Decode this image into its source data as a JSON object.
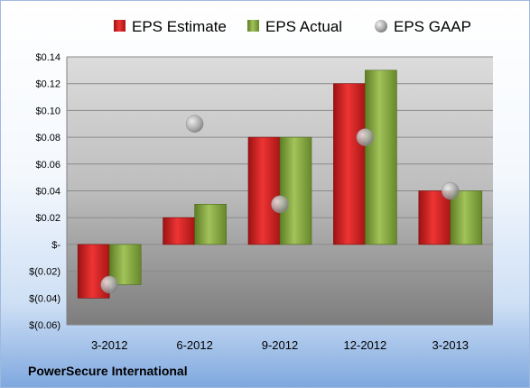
{
  "company": "PowerSecure International",
  "colors": {
    "estimate": "#cc1f1f",
    "actual": "#84a83a",
    "gaap": "#a9a9a9"
  },
  "chart_data": {
    "type": "bar",
    "categories": [
      "3-2012",
      "6-2012",
      "9-2012",
      "12-2012",
      "3-2013"
    ],
    "series": [
      {
        "name": "EPS Estimate",
        "kind": "bar",
        "values": [
          -0.04,
          0.02,
          0.08,
          0.12,
          0.04
        ]
      },
      {
        "name": "EPS Actual",
        "kind": "bar",
        "values": [
          -0.03,
          0.03,
          0.08,
          0.13,
          0.04
        ]
      },
      {
        "name": "EPS GAAP",
        "kind": "scatter",
        "values": [
          -0.03,
          0.09,
          0.03,
          0.08,
          0.04
        ]
      }
    ],
    "ylim": [
      -0.06,
      0.14
    ],
    "yticks": [
      0.14,
      0.12,
      0.1,
      0.08,
      0.06,
      0.04,
      0.02,
      0,
      -0.02,
      -0.04,
      -0.06
    ],
    "ytick_labels": [
      "$0.14",
      "$0.12",
      "$0.10",
      "$0.08",
      "$0.06",
      "$0.04",
      "$0.02",
      "$-",
      "$(0.02)",
      "$(0.04)",
      "$(0.06)"
    ],
    "grid": true,
    "legend_position": "top"
  }
}
